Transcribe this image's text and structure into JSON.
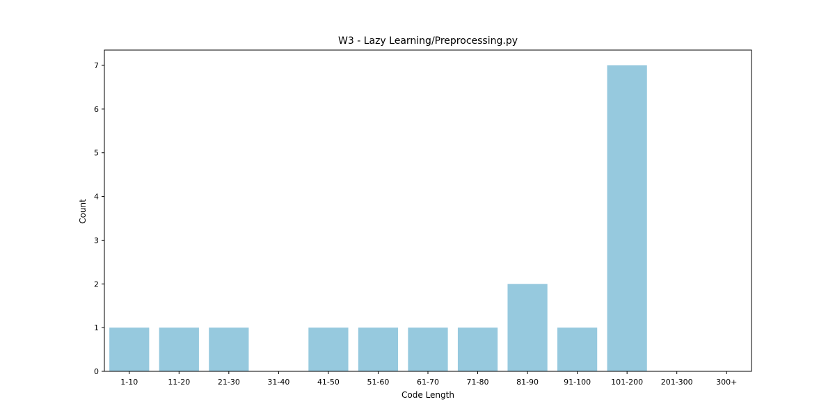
{
  "chart_data": {
    "type": "bar",
    "title": "W3 - Lazy Learning/Preprocessing.py",
    "xlabel": "Code Length",
    "ylabel": "Count",
    "categories": [
      "1-10",
      "11-20",
      "21-30",
      "31-40",
      "41-50",
      "51-60",
      "61-70",
      "71-80",
      "81-90",
      "91-100",
      "101-200",
      "201-300",
      "300+"
    ],
    "values": [
      1,
      1,
      1,
      0,
      1,
      1,
      1,
      1,
      2,
      1,
      7,
      0,
      0
    ],
    "ylim": [
      0,
      7.35
    ],
    "yticks": [
      0,
      1,
      2,
      3,
      4,
      5,
      6,
      7
    ],
    "grid": false,
    "legend": "none",
    "bar_color": "#96c9de"
  }
}
